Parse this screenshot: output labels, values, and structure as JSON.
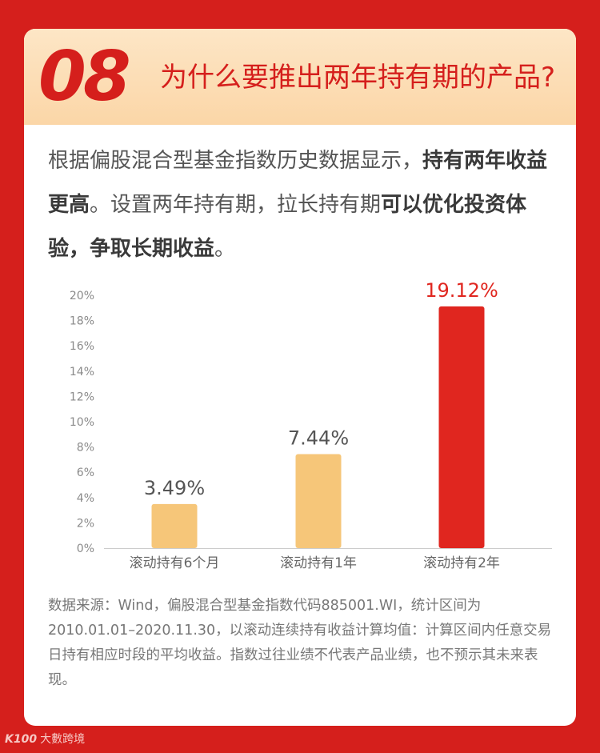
{
  "header": {
    "number": "08",
    "title": "为什么要推出两年持有期的产品?"
  },
  "intro": {
    "part1": "根据偏股混合型基金指数历史数据显示，",
    "bold1": "持有两年收益更高",
    "part2": "。设置两年持有期，拉长持有期",
    "bold2": "可以优化投资体验，争取长期收益",
    "part3": "。"
  },
  "chart_data": {
    "type": "bar",
    "categories": [
      "滚动持有6个月",
      "滚动持有1年",
      "滚动持有2年"
    ],
    "values": [
      3.49,
      7.44,
      19.12
    ],
    "value_labels": [
      "3.49%",
      "7.44%",
      "19.12%"
    ],
    "y_ticks": [
      "0%",
      "2%",
      "4%",
      "6%",
      "8%",
      "10%",
      "12%",
      "14%",
      "16%",
      "18%",
      "20%"
    ],
    "ylim": [
      0,
      20
    ],
    "grid": false,
    "colors": [
      "#f6c679",
      "#f6c679",
      "#e0261f"
    ],
    "label_colors": [
      "#555555",
      "#555555",
      "#e0261f"
    ]
  },
  "source": "数据来源：Wind，偏股混合型基金指数代码885001.WI，统计区间为2010.01.01–2020.11.30，以滚动连续持有收益计算均值：计算区间内任意交易日持有相应时段的平均收益。指数过往业绩不代表产品业绩，也不预示其未来表现。",
  "brand": {
    "logo": "K100",
    "name": "大數跨境"
  },
  "colors": {
    "background": "#d51f1c",
    "header_gradient_top": "#fde6c6",
    "header_gradient_bottom": "#fbd6a7"
  }
}
